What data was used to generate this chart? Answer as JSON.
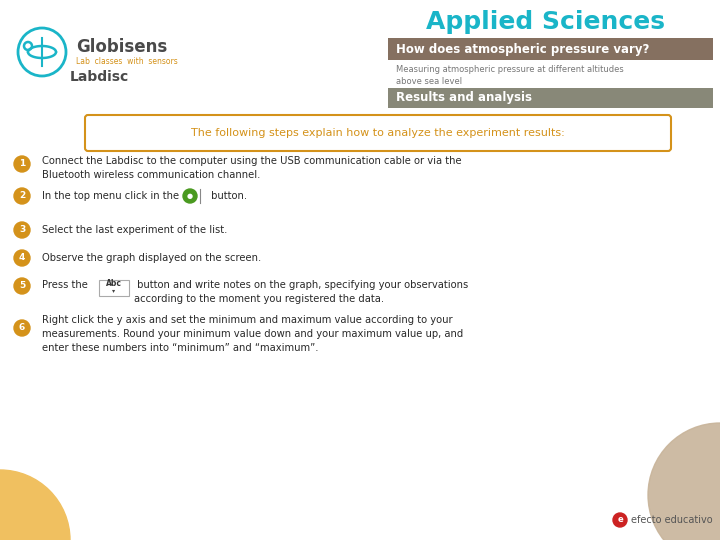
{
  "bg_color": "#ffffff",
  "title_text": "Applied Sciences",
  "title_color": "#1ab5c8",
  "brown_bar_text": "How does atmospheric pressure vary?",
  "brown_bar_color": "#857060",
  "subtitle_text": "Measuring atmospheric pressure at different altitudes\nabove sea level",
  "subtitle_color": "#777777",
  "gray_bar_text": "Results and analysis",
  "gray_bar_color": "#888878",
  "intro_box_text": "The following steps explain how to analyze the experiment results:",
  "intro_box_color": "#d4921a",
  "step_badge_color": "#d4921a",
  "step_text_color": "#2a2a2a",
  "teal_color": "#1ab5c8",
  "globisens_color": "#4a4a4a",
  "lab_color": "#d4921a",
  "footer_text": "efecto educativo",
  "footer_badge_color": "#cc2222",
  "circle_left_color": "#f0c060",
  "circle_right_color": "#c8b49a",
  "step1": "Connect the Labdisc to the computer using the USB communication cable or via the\nBluetooth wireless communication channel.",
  "step2a": "In the top menu click in the ",
  "step2b": " button.",
  "step3": "Select the last experiment of the list.",
  "step4": "Observe the graph displayed on the screen.",
  "step5a": "Press the ",
  "step5b": " button and write notes on the graph, specifying your observations\naccording to the moment you registered the data.",
  "step6": "Right click the y axis and set the minimum and maximum value according to your\nmeasurements. Round your minimum value down and your maximum value up, and\nenter these numbers into “minimum” and “maximum”."
}
